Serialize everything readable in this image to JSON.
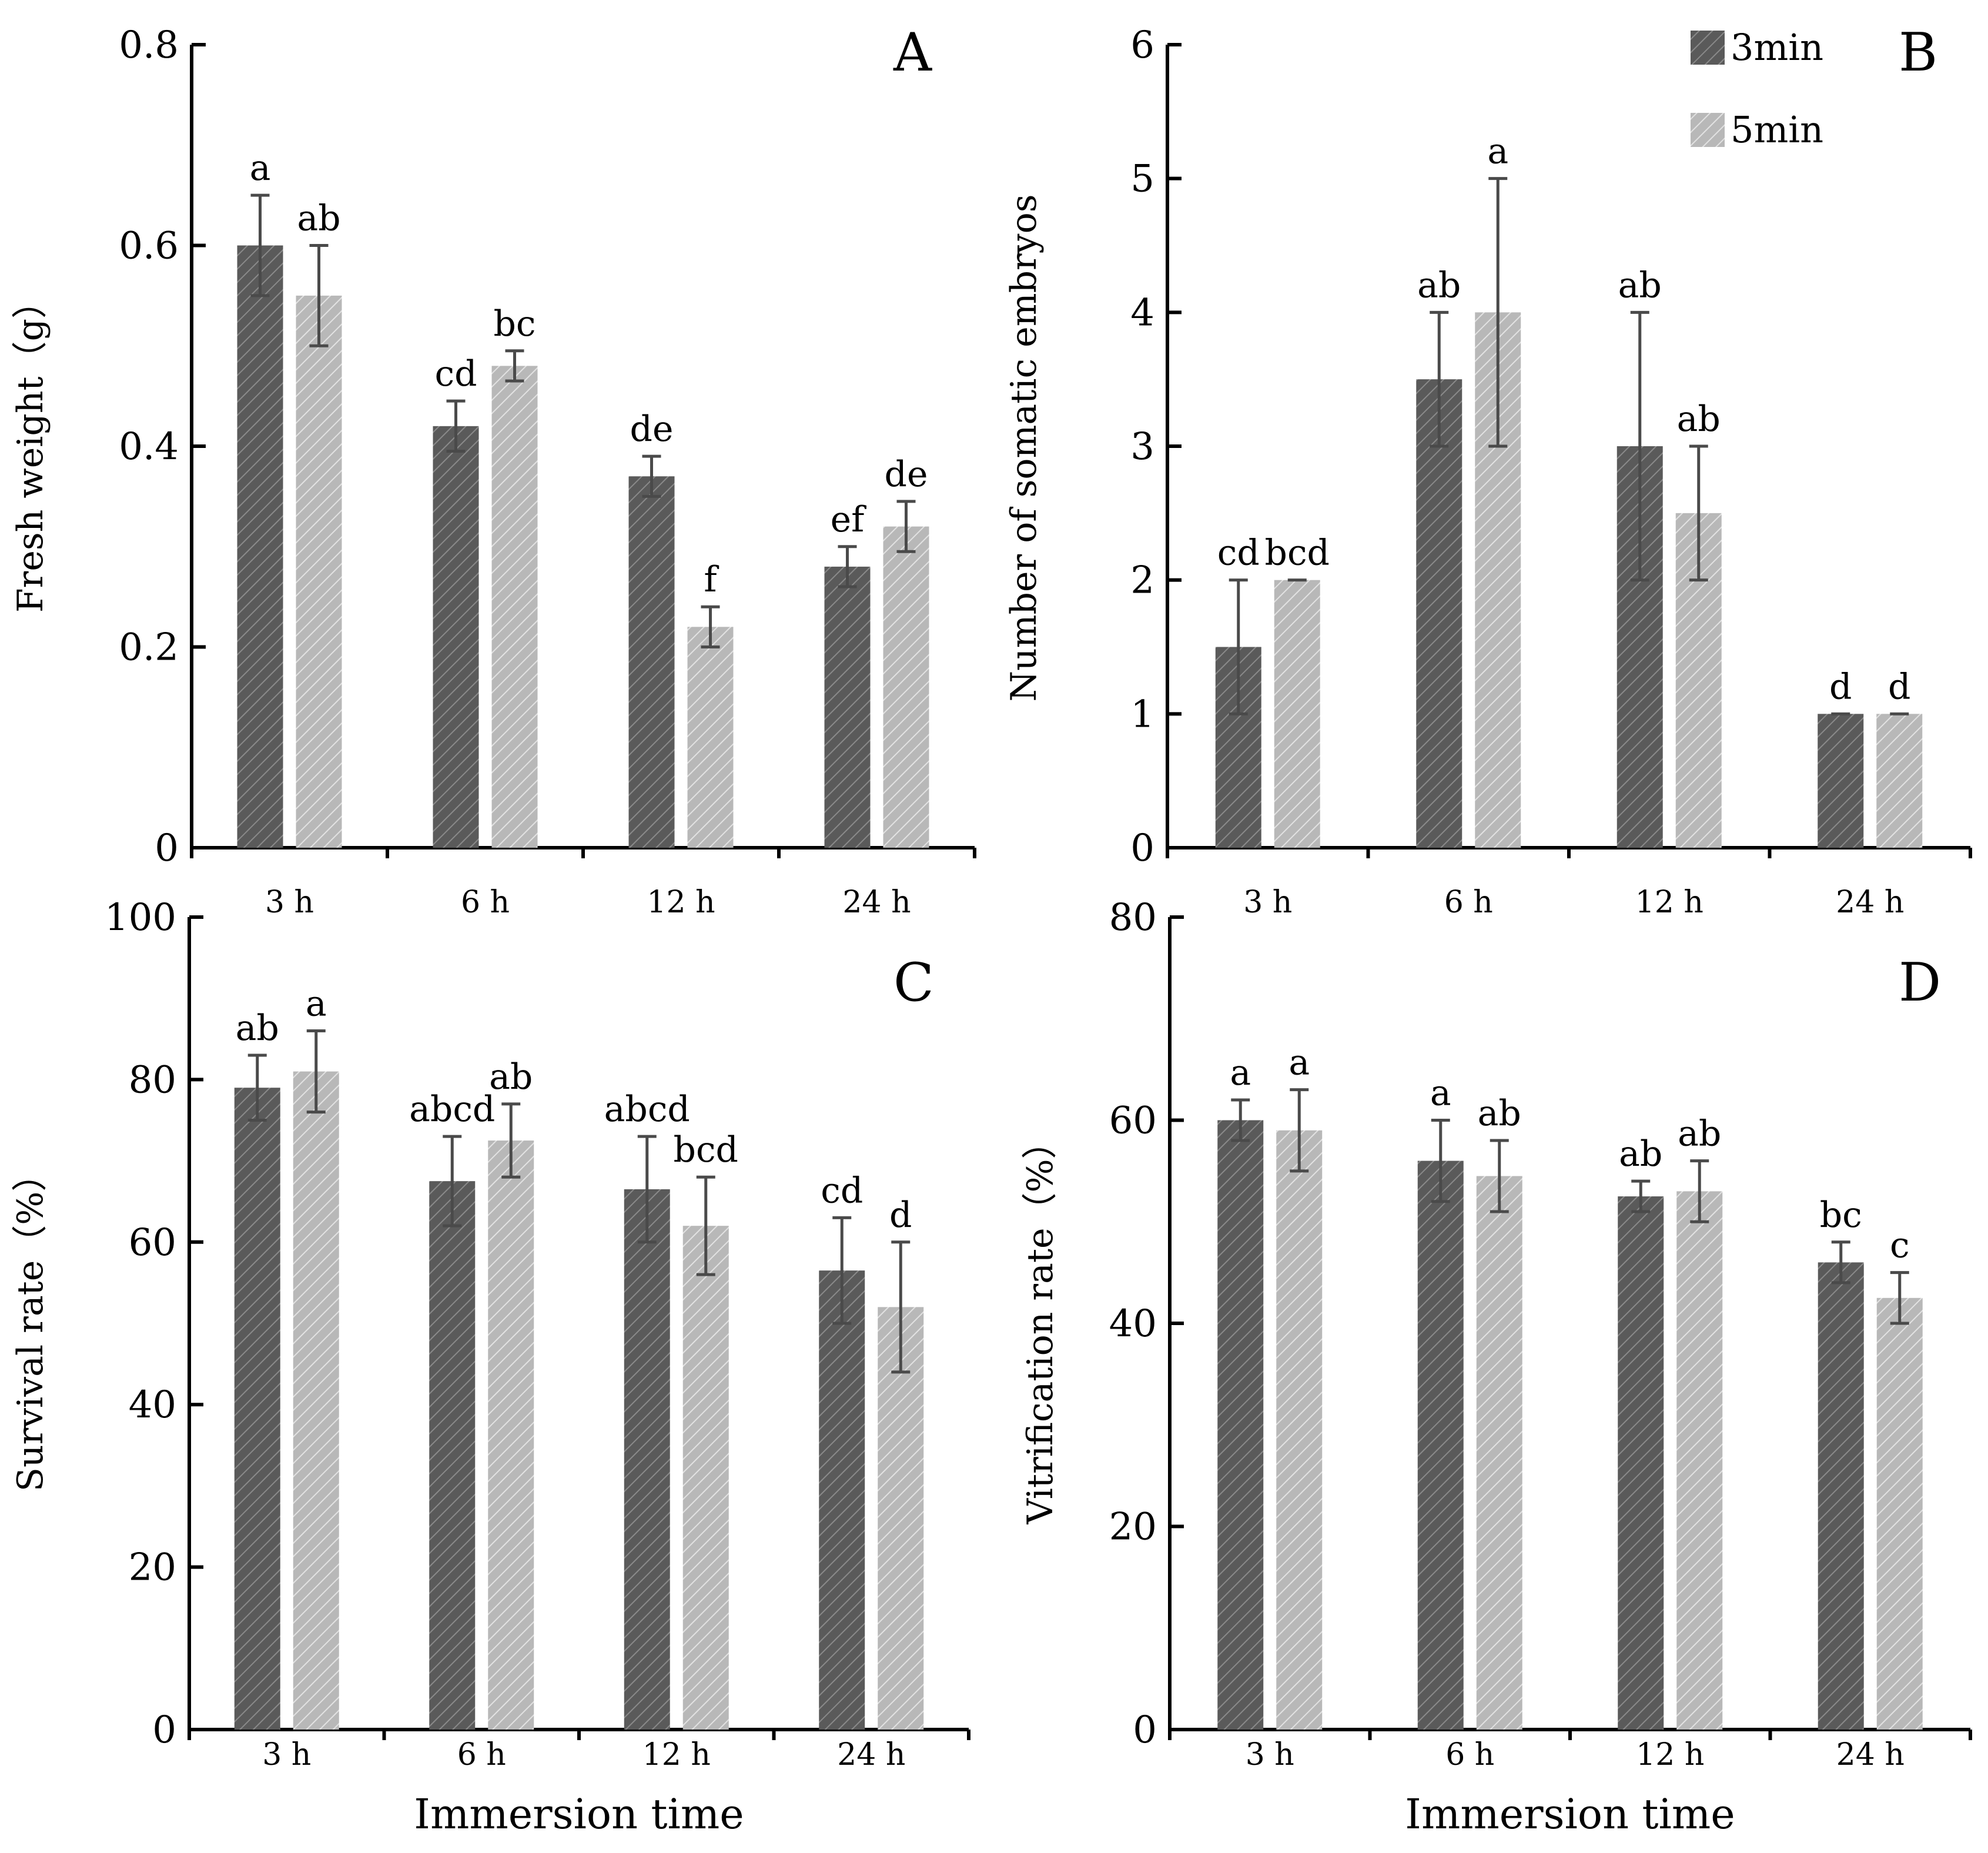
{
  "chart_data": [
    {
      "type": "bar",
      "panel_letter": "A",
      "ylabel": "Fresh weight（g）",
      "xlabel": "",
      "categories": [
        "3 h",
        "6 h",
        "12 h",
        "24 h"
      ],
      "ylim": [
        0,
        0.8
      ],
      "yticks": [
        "0",
        "0.2",
        "0.4",
        "0.6",
        "0.8"
      ],
      "series": [
        {
          "name": "3min",
          "values": [
            0.6,
            0.42,
            0.37,
            0.28
          ],
          "errors": [
            0.05,
            0.025,
            0.02,
            0.02
          ],
          "letters": [
            "a",
            "cd",
            "de",
            "ef"
          ]
        },
        {
          "name": "5min",
          "values": [
            0.55,
            0.48,
            0.22,
            0.32
          ],
          "errors": [
            0.05,
            0.015,
            0.02,
            0.025
          ],
          "letters": [
            "ab",
            "bc",
            "f",
            "de"
          ]
        }
      ]
    },
    {
      "type": "bar",
      "panel_letter": "B",
      "ylabel": "Number of somatic embryos",
      "xlabel": "",
      "categories": [
        "3 h",
        "6 h",
        "12 h",
        "24 h"
      ],
      "ylim": [
        0,
        6
      ],
      "yticks": [
        "0",
        "1",
        "2",
        "3",
        "4",
        "5",
        "6"
      ],
      "legend": [
        "3min",
        "5min"
      ],
      "series": [
        {
          "name": "3min",
          "values": [
            1.5,
            3.5,
            3.0,
            1.0
          ],
          "errors": [
            0.5,
            0.5,
            1.0,
            0.0
          ],
          "letters": [
            "cd",
            "ab",
            "ab",
            "d"
          ]
        },
        {
          "name": "5min",
          "values": [
            2.0,
            4.0,
            2.5,
            1.0
          ],
          "errors": [
            0.0,
            1.0,
            0.5,
            0.0
          ],
          "letters": [
            "bcd",
            "a",
            "ab",
            "d"
          ]
        }
      ]
    },
    {
      "type": "bar",
      "panel_letter": "C",
      "ylabel": "Survival rate（%）",
      "xlabel": "Immersion time",
      "categories": [
        "3 h",
        "6 h",
        "12 h",
        "24 h"
      ],
      "ylim": [
        0,
        100
      ],
      "yticks": [
        "0",
        "20",
        "40",
        "60",
        "80",
        "100"
      ],
      "series": [
        {
          "name": "3min",
          "values": [
            79,
            67.5,
            66.5,
            56.5
          ],
          "errors": [
            4,
            5.5,
            6.5,
            6.5
          ],
          "letters": [
            "ab",
            "abcd",
            "abcd",
            "cd"
          ]
        },
        {
          "name": "5min",
          "values": [
            81,
            72.5,
            62,
            52
          ],
          "errors": [
            5,
            4.5,
            6,
            8
          ],
          "letters": [
            "a",
            "ab",
            "bcd",
            "d"
          ]
        }
      ]
    },
    {
      "type": "bar",
      "panel_letter": "D",
      "ylabel": "Vitrification rate（%）",
      "xlabel": "Immersion time",
      "categories": [
        "3 h",
        "6 h",
        "12 h",
        "24 h"
      ],
      "ylim": [
        0,
        80
      ],
      "yticks": [
        "0",
        "20",
        "40",
        "60",
        "80"
      ],
      "series": [
        {
          "name": "3min",
          "values": [
            60,
            56,
            52.5,
            46
          ],
          "errors": [
            2,
            4,
            1.5,
            2
          ],
          "letters": [
            "a",
            "a",
            "ab",
            "bc"
          ]
        },
        {
          "name": "5min",
          "values": [
            59,
            54.5,
            53,
            42.5
          ],
          "errors": [
            4,
            3.5,
            3,
            2.5
          ],
          "letters": [
            "a",
            "ab",
            "ab",
            "c"
          ]
        }
      ]
    }
  ],
  "colors": {
    "series_3min": "#5a5a5a",
    "series_5min": "#bdbdbd",
    "error_bar": "#4a4a4a"
  }
}
